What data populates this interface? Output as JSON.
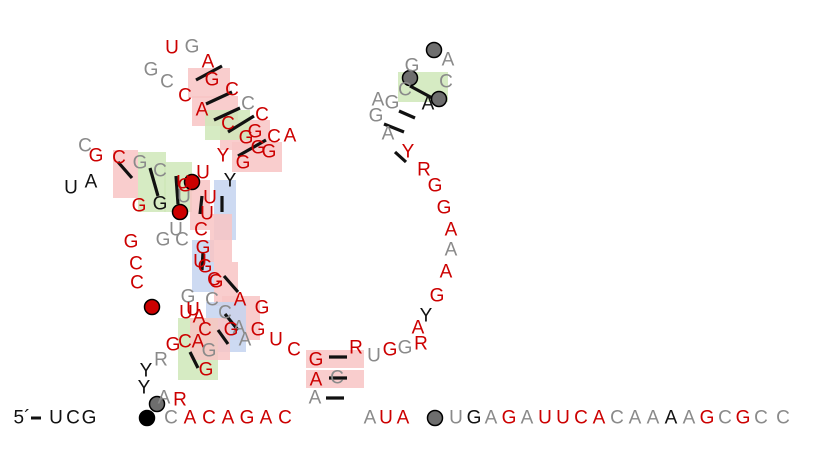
{
  "colors": {
    "red": "#cc0000",
    "grey": "#8a8a8a",
    "black": "#111111",
    "pair_red": "#f8c4c4",
    "pair_green": "#cfe8b8",
    "pair_blue": "#c4d4f0",
    "dot_grey": "#6e6e6e",
    "dot_red": "#cc0000",
    "dot_black": "#000000"
  },
  "five_prime_label": "5´",
  "sequence": [
    "U",
    "C",
    "G",
    "C",
    "A",
    "C",
    "A",
    "G",
    "A",
    "C",
    "A",
    "U",
    "A",
    "U",
    "G",
    "A",
    "G",
    "A",
    "U",
    "U",
    "C",
    "A",
    "C",
    "A",
    "A",
    "A",
    "A",
    "G",
    "C",
    "G",
    "C",
    "C",
    "A",
    "A",
    "G",
    "C",
    "U",
    "G",
    "A",
    "C",
    "C",
    "G",
    "G",
    "G",
    "C",
    "U",
    "U",
    "G",
    "G",
    "C",
    "G",
    "C",
    "U",
    "U",
    "Y",
    "G",
    "G",
    "C",
    "A",
    "G",
    "G",
    "C",
    "A",
    "C",
    "C",
    "G",
    "U",
    "G",
    "A",
    "G",
    "C",
    "C",
    "C",
    "G",
    "Y",
    "U",
    "G",
    "G",
    "C",
    "A",
    "U",
    "U",
    "C",
    "G",
    "U",
    "C",
    "G",
    "C",
    "C",
    "G",
    "U",
    "C",
    "A",
    "G",
    "R",
    "Y",
    "Y",
    "A",
    "R",
    "G",
    "C",
    "G",
    "G",
    "A",
    "U",
    "A",
    "A",
    "G",
    "C",
    "R",
    "U",
    "G",
    "G",
    "R",
    "A",
    "Y",
    "G",
    "A",
    "A",
    "A",
    "G",
    "G",
    "R",
    "Y",
    "A",
    "G",
    "G",
    "C",
    "G",
    "A",
    "C",
    "A",
    "A"
  ]
}
